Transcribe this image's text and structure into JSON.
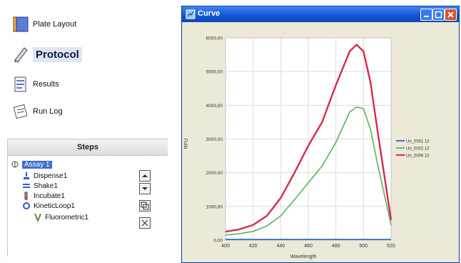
{
  "nav": [
    {
      "key": "plate_layout",
      "label": "Plate Layout"
    },
    {
      "key": "protocol",
      "label": "Protocol"
    },
    {
      "key": "results",
      "label": "Results"
    },
    {
      "key": "run_log",
      "label": "Run Log"
    }
  ],
  "steps": {
    "header": "Steps",
    "items": [
      {
        "label": "Assay 1",
        "icon": "assay-icon"
      },
      {
        "label": "Dispense1",
        "icon": "dispense-icon"
      },
      {
        "label": "Shake1",
        "icon": "shake-icon"
      },
      {
        "label": "Incubate1",
        "icon": "incubate-icon"
      },
      {
        "label": "KineticLoop1",
        "icon": "kinetic-loop-icon"
      },
      {
        "label": "Fluorometric1",
        "icon": "fluorometric-icon"
      }
    ]
  },
  "window": {
    "title": "Curve"
  },
  "colors": {
    "titlebar": "#1557d6",
    "series1": "#3a73c8",
    "series2": "#67b96a",
    "series3": "#d62a4d"
  },
  "chart_data": {
    "type": "line",
    "xlabel": "Wavelength",
    "ylabel": "RFU",
    "xlim": [
      400,
      520
    ],
    "ylim": [
      0,
      6000
    ],
    "xticks": [
      "400",
      "420",
      "440",
      "460",
      "480",
      "500",
      "520"
    ],
    "yticks": [
      "0,00",
      "1000,00",
      "2000,00",
      "3000,00",
      "4000,00",
      "5000,00",
      "6000,00"
    ],
    "legend_position": "right",
    "grid": true,
    "series": [
      {
        "name": "Un_0001 1/I",
        "x": [
          400,
          520
        ],
        "y": [
          20,
          20
        ]
      },
      {
        "name": "Un_0002 1/I",
        "x": [
          400,
          410,
          420,
          430,
          440,
          450,
          460,
          470,
          480,
          490,
          495,
          500,
          505,
          510,
          520
        ],
        "y": [
          150,
          190,
          260,
          420,
          720,
          1200,
          1700,
          2200,
          2900,
          3800,
          3950,
          3900,
          3300,
          2300,
          450
        ]
      },
      {
        "name": "Un_0006 1/I",
        "x": [
          400,
          410,
          420,
          430,
          440,
          450,
          460,
          470,
          480,
          490,
          495,
          500,
          505,
          510,
          520
        ],
        "y": [
          250,
          320,
          450,
          720,
          1250,
          2000,
          2800,
          3500,
          4600,
          5600,
          5800,
          5600,
          4700,
          3300,
          600
        ]
      }
    ]
  }
}
